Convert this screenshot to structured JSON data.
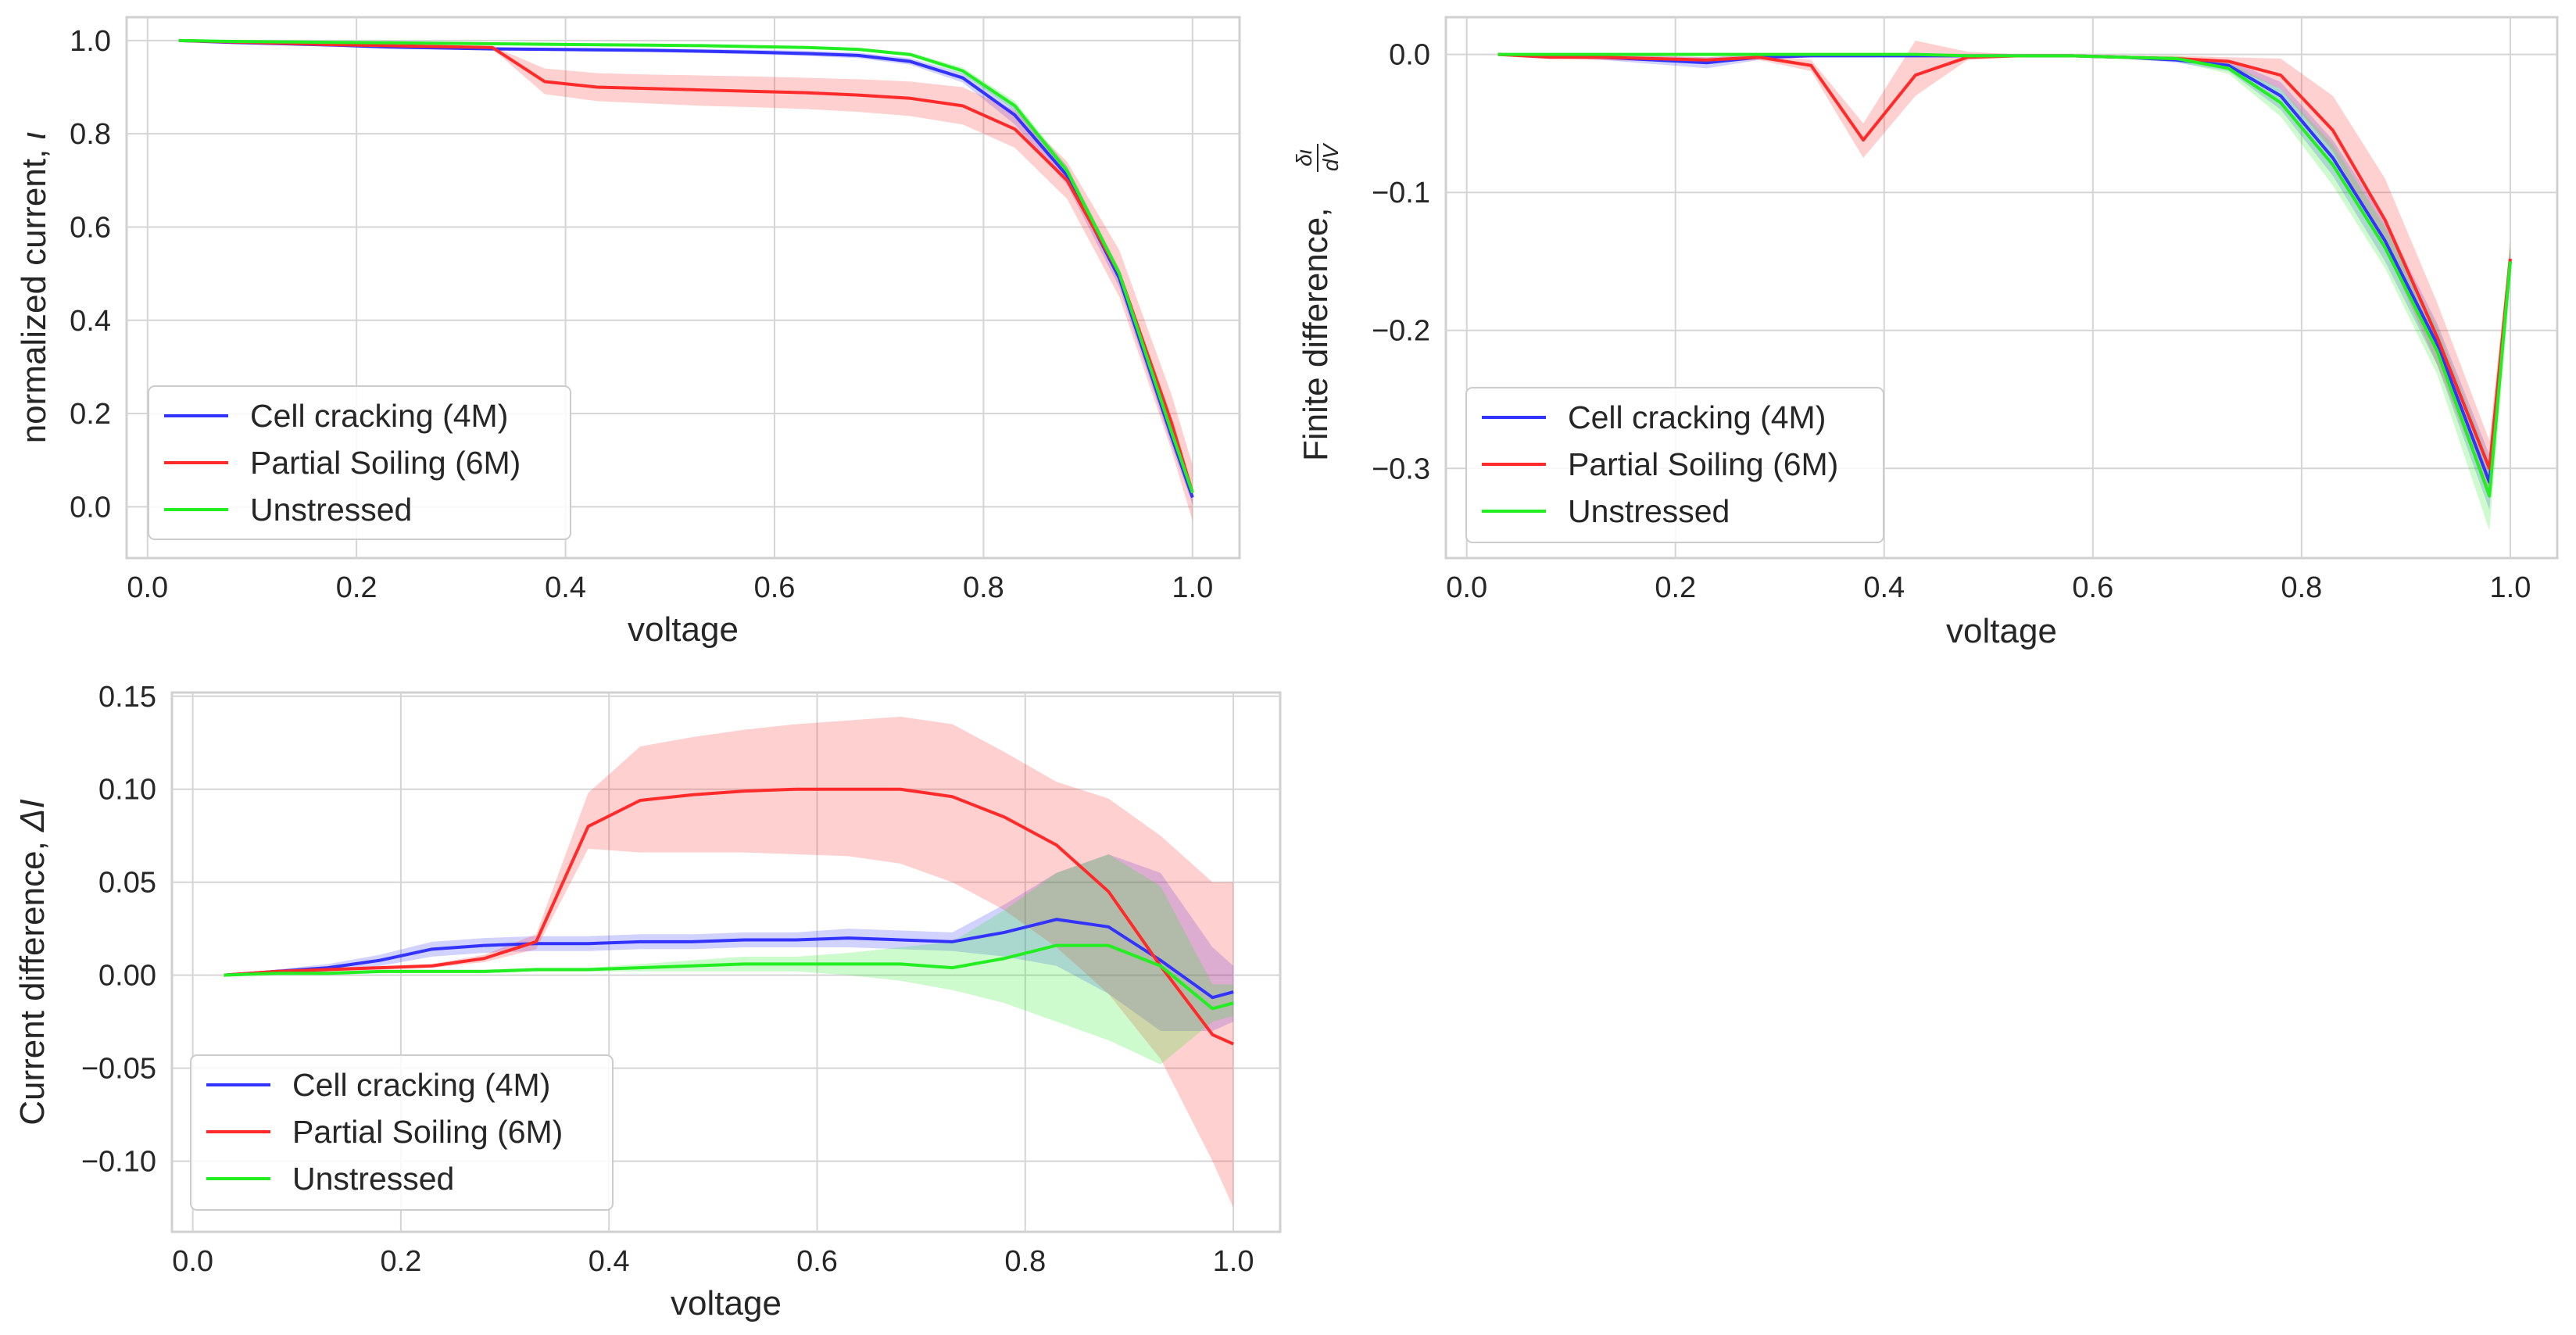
{
  "chart_data": [
    {
      "id": "iv",
      "type": "line",
      "title": "",
      "xlabel": "voltage",
      "ylabel": "normalized current, ",
      "ylabel_symbol": "ι",
      "xlim": [
        -0.02,
        1.045
      ],
      "ylim": [
        -0.11,
        1.05
      ],
      "xticks": [
        "0.0",
        "0.2",
        "0.4",
        "0.6",
        "0.8",
        "1.0"
      ],
      "xtick_values": [
        0.0,
        0.2,
        0.4,
        0.6,
        0.8,
        1.0
      ],
      "yticks": [
        "0.0",
        "0.2",
        "0.4",
        "0.6",
        "0.8",
        "1.0"
      ],
      "ytick_values": [
        0.0,
        0.2,
        0.4,
        0.6,
        0.8,
        1.0
      ],
      "grid": true,
      "legend_position": "lower-left",
      "x": [
        0.03,
        0.08,
        0.13,
        0.18,
        0.23,
        0.28,
        0.33,
        0.38,
        0.43,
        0.48,
        0.53,
        0.58,
        0.63,
        0.68,
        0.73,
        0.78,
        0.83,
        0.88,
        0.93,
        0.98,
        1.0
      ],
      "series": [
        {
          "name": "Cell cracking (4M)",
          "color": "#3333ff",
          "values": [
            1.0,
            0.996,
            0.993,
            0.99,
            0.986,
            0.984,
            0.982,
            0.981,
            0.98,
            0.979,
            0.977,
            0.975,
            0.972,
            0.968,
            0.955,
            0.92,
            0.84,
            0.71,
            0.49,
            0.15,
            0.02
          ],
          "lower": [
            1.0,
            0.995,
            0.991,
            0.987,
            0.983,
            0.981,
            0.979,
            0.978,
            0.976,
            0.975,
            0.973,
            0.97,
            0.967,
            0.962,
            0.948,
            0.91,
            0.82,
            0.69,
            0.47,
            0.13,
            0.005
          ],
          "upper": [
            1.0,
            0.997,
            0.995,
            0.993,
            0.99,
            0.988,
            0.986,
            0.985,
            0.984,
            0.983,
            0.982,
            0.98,
            0.978,
            0.974,
            0.962,
            0.93,
            0.86,
            0.73,
            0.51,
            0.17,
            0.035
          ]
        },
        {
          "name": "Partial Soiling (6M)",
          "color": "#ff2a2a",
          "values": [
            1.0,
            0.997,
            0.994,
            0.991,
            0.989,
            0.987,
            0.985,
            0.912,
            0.9,
            0.897,
            0.894,
            0.891,
            0.888,
            0.883,
            0.876,
            0.86,
            0.81,
            0.7,
            0.5,
            0.18,
            0.03
          ],
          "lower": [
            1.0,
            0.996,
            0.992,
            0.989,
            0.987,
            0.985,
            0.982,
            0.885,
            0.87,
            0.865,
            0.86,
            0.857,
            0.853,
            0.847,
            0.838,
            0.82,
            0.77,
            0.66,
            0.45,
            0.12,
            -0.03
          ],
          "upper": [
            1.0,
            0.998,
            0.996,
            0.993,
            0.991,
            0.989,
            0.988,
            0.94,
            0.93,
            0.927,
            0.925,
            0.923,
            0.92,
            0.917,
            0.912,
            0.9,
            0.85,
            0.74,
            0.55,
            0.24,
            0.09
          ]
        },
        {
          "name": "Unstressed",
          "color": "#22ee22",
          "values": [
            1.0,
            0.998,
            0.997,
            0.996,
            0.995,
            0.994,
            0.993,
            0.992,
            0.991,
            0.99,
            0.989,
            0.987,
            0.985,
            0.981,
            0.97,
            0.935,
            0.86,
            0.72,
            0.5,
            0.16,
            0.03
          ],
          "lower": [
            1.0,
            0.997,
            0.996,
            0.995,
            0.994,
            0.993,
            0.992,
            0.991,
            0.99,
            0.989,
            0.987,
            0.985,
            0.983,
            0.978,
            0.966,
            0.928,
            0.85,
            0.71,
            0.49,
            0.15,
            0.02
          ],
          "upper": [
            1.0,
            0.999,
            0.998,
            0.997,
            0.996,
            0.995,
            0.994,
            0.993,
            0.992,
            0.991,
            0.99,
            0.989,
            0.987,
            0.984,
            0.974,
            0.942,
            0.87,
            0.73,
            0.51,
            0.17,
            0.04
          ]
        }
      ]
    },
    {
      "id": "fd",
      "type": "line",
      "title": "",
      "xlabel": "voltage",
      "ylabel": "Finite difference, ",
      "ylabel_frac_num": "δι",
      "ylabel_frac_den": "dV",
      "xlim": [
        -0.02,
        1.045
      ],
      "ylim": [
        -0.365,
        0.027
      ],
      "xticks": [
        "0.0",
        "0.2",
        "0.4",
        "0.6",
        "0.8",
        "1.0"
      ],
      "xtick_values": [
        0.0,
        0.2,
        0.4,
        0.6,
        0.8,
        1.0
      ],
      "yticks": [
        "0.0",
        "−0.1",
        "−0.2",
        "−0.3"
      ],
      "ytick_values": [
        0.0,
        -0.1,
        -0.2,
        -0.3
      ],
      "grid": true,
      "legend_position": "lower-left",
      "x": [
        0.03,
        0.08,
        0.13,
        0.18,
        0.23,
        0.28,
        0.33,
        0.38,
        0.43,
        0.48,
        0.53,
        0.58,
        0.63,
        0.68,
        0.73,
        0.78,
        0.83,
        0.88,
        0.93,
        0.98,
        1.0
      ],
      "series": [
        {
          "name": "Cell cracking (4M)",
          "color": "#3333ff",
          "values": [
            0.0,
            -0.001,
            -0.002,
            -0.004,
            -0.006,
            -0.002,
            -0.001,
            -0.001,
            -0.001,
            -0.001,
            -0.001,
            -0.001,
            -0.002,
            -0.004,
            -0.008,
            -0.03,
            -0.075,
            -0.135,
            -0.21,
            -0.31,
            -0.15
          ],
          "lower": [
            0.0,
            -0.002,
            -0.004,
            -0.007,
            -0.01,
            -0.004,
            -0.002,
            -0.002,
            -0.002,
            -0.002,
            -0.002,
            -0.002,
            -0.003,
            -0.006,
            -0.012,
            -0.04,
            -0.088,
            -0.15,
            -0.225,
            -0.33,
            -0.16
          ],
          "upper": [
            0.0,
            0.0,
            0.0,
            -0.001,
            -0.002,
            0.0,
            0.0,
            0.0,
            0.0,
            0.0,
            0.0,
            0.0,
            -0.001,
            -0.002,
            -0.004,
            -0.02,
            -0.062,
            -0.12,
            -0.195,
            -0.29,
            -0.14
          ]
        },
        {
          "name": "Partial Soiling (6M)",
          "color": "#ff2a2a",
          "values": [
            0.0,
            -0.002,
            -0.002,
            -0.003,
            -0.004,
            -0.002,
            -0.008,
            -0.062,
            -0.015,
            -0.002,
            -0.001,
            -0.001,
            -0.002,
            -0.003,
            -0.005,
            -0.015,
            -0.055,
            -0.12,
            -0.205,
            -0.3,
            -0.148
          ],
          "lower": [
            0.0,
            -0.003,
            -0.004,
            -0.005,
            -0.006,
            -0.004,
            -0.012,
            -0.075,
            -0.03,
            -0.004,
            -0.002,
            -0.002,
            -0.003,
            -0.005,
            -0.008,
            -0.025,
            -0.07,
            -0.14,
            -0.225,
            -0.32,
            -0.16
          ],
          "upper": [
            0.0,
            -0.001,
            0.0,
            -0.001,
            -0.002,
            0.0,
            -0.004,
            -0.05,
            0.01,
            0.002,
            0.0,
            0.0,
            -0.001,
            -0.001,
            -0.002,
            -0.003,
            -0.03,
            -0.09,
            -0.18,
            -0.28,
            -0.135
          ]
        },
        {
          "name": "Unstressed",
          "color": "#22ee22",
          "values": [
            0.0,
            0.0,
            0.0,
            0.0,
            0.0,
            0.0,
            0.0,
            0.0,
            0.0,
            -0.001,
            -0.001,
            -0.001,
            -0.002,
            -0.003,
            -0.01,
            -0.035,
            -0.08,
            -0.14,
            -0.215,
            -0.32,
            -0.15
          ],
          "lower": [
            0.0,
            -0.001,
            -0.001,
            -0.001,
            -0.001,
            -0.001,
            -0.001,
            -0.001,
            -0.001,
            -0.002,
            -0.002,
            -0.002,
            -0.003,
            -0.005,
            -0.014,
            -0.045,
            -0.095,
            -0.155,
            -0.232,
            -0.345,
            -0.165
          ],
          "upper": [
            0.0,
            0.001,
            0.001,
            0.001,
            0.001,
            0.001,
            0.001,
            0.001,
            0.001,
            0.0,
            0.0,
            0.0,
            -0.001,
            -0.001,
            -0.006,
            -0.025,
            -0.065,
            -0.125,
            -0.198,
            -0.295,
            -0.135
          ]
        }
      ]
    },
    {
      "id": "cd",
      "type": "line",
      "title": "",
      "xlabel": "voltage",
      "ylabel": "Current difference, ",
      "ylabel_symbol": "ΔI",
      "xlim": [
        -0.02,
        1.045
      ],
      "ylim": [
        -0.138,
        0.152
      ],
      "xticks": [
        "0.0",
        "0.2",
        "0.4",
        "0.6",
        "0.8",
        "1.0"
      ],
      "xtick_values": [
        0.0,
        0.2,
        0.4,
        0.6,
        0.8,
        1.0
      ],
      "yticks": [
        "0.15",
        "0.10",
        "0.05",
        "0.00",
        "−0.05",
        "−0.10"
      ],
      "ytick_values": [
        0.15,
        0.1,
        0.05,
        0.0,
        -0.05,
        -0.1
      ],
      "grid": true,
      "legend_position": "lower-left",
      "x": [
        0.03,
        0.08,
        0.13,
        0.18,
        0.23,
        0.28,
        0.33,
        0.38,
        0.43,
        0.48,
        0.53,
        0.58,
        0.63,
        0.68,
        0.73,
        0.78,
        0.83,
        0.88,
        0.93,
        0.98,
        1.0
      ],
      "series": [
        {
          "name": "Cell cracking (4M)",
          "color": "#3333ff",
          "values": [
            0.0,
            0.002,
            0.004,
            0.008,
            0.014,
            0.016,
            0.017,
            0.017,
            0.018,
            0.018,
            0.019,
            0.019,
            0.02,
            0.019,
            0.018,
            0.023,
            0.03,
            0.026,
            0.008,
            -0.012,
            -0.009
          ],
          "lower": [
            0.0,
            0.001,
            0.002,
            0.005,
            0.01,
            0.012,
            0.013,
            0.013,
            0.014,
            0.014,
            0.015,
            0.015,
            0.015,
            0.014,
            0.013,
            0.01,
            0.005,
            -0.01,
            -0.03,
            -0.03,
            -0.025
          ],
          "upper": [
            0.0,
            0.003,
            0.006,
            0.011,
            0.018,
            0.02,
            0.021,
            0.021,
            0.022,
            0.022,
            0.023,
            0.023,
            0.025,
            0.024,
            0.023,
            0.038,
            0.055,
            0.065,
            0.055,
            0.015,
            0.005
          ]
        },
        {
          "name": "Partial Soiling (6M)",
          "color": "#ff2a2a",
          "values": [
            0.0,
            0.002,
            0.003,
            0.004,
            0.005,
            0.009,
            0.018,
            0.08,
            0.094,
            0.097,
            0.099,
            0.1,
            0.1,
            0.1,
            0.096,
            0.085,
            0.07,
            0.045,
            0.005,
            -0.032,
            -0.037
          ],
          "lower": [
            0.0,
            0.001,
            0.002,
            0.003,
            0.004,
            0.007,
            0.014,
            0.068,
            0.066,
            0.066,
            0.066,
            0.065,
            0.064,
            0.06,
            0.05,
            0.035,
            0.015,
            -0.01,
            -0.045,
            -0.1,
            -0.125
          ],
          "upper": [
            0.0,
            0.003,
            0.004,
            0.005,
            0.006,
            0.011,
            0.022,
            0.098,
            0.123,
            0.128,
            0.132,
            0.135,
            0.137,
            0.139,
            0.135,
            0.12,
            0.104,
            0.095,
            0.075,
            0.05,
            0.05
          ]
        },
        {
          "name": "Unstressed",
          "color": "#22ee22",
          "values": [
            0.0,
            0.001,
            0.001,
            0.002,
            0.002,
            0.002,
            0.003,
            0.003,
            0.004,
            0.005,
            0.006,
            0.006,
            0.006,
            0.006,
            0.004,
            0.009,
            0.016,
            0.016,
            0.005,
            -0.018,
            -0.015
          ],
          "lower": [
            0.0,
            0.0,
            0.0,
            0.001,
            0.001,
            0.001,
            0.002,
            0.002,
            0.002,
            0.002,
            0.002,
            0.002,
            0.0,
            -0.003,
            -0.008,
            -0.015,
            -0.025,
            -0.035,
            -0.048,
            -0.025,
            -0.022
          ],
          "upper": [
            0.0,
            0.002,
            0.002,
            0.003,
            0.003,
            0.003,
            0.004,
            0.004,
            0.006,
            0.008,
            0.01,
            0.01,
            0.012,
            0.015,
            0.018,
            0.035,
            0.055,
            0.065,
            0.048,
            -0.005,
            -0.005
          ]
        }
      ]
    }
  ]
}
